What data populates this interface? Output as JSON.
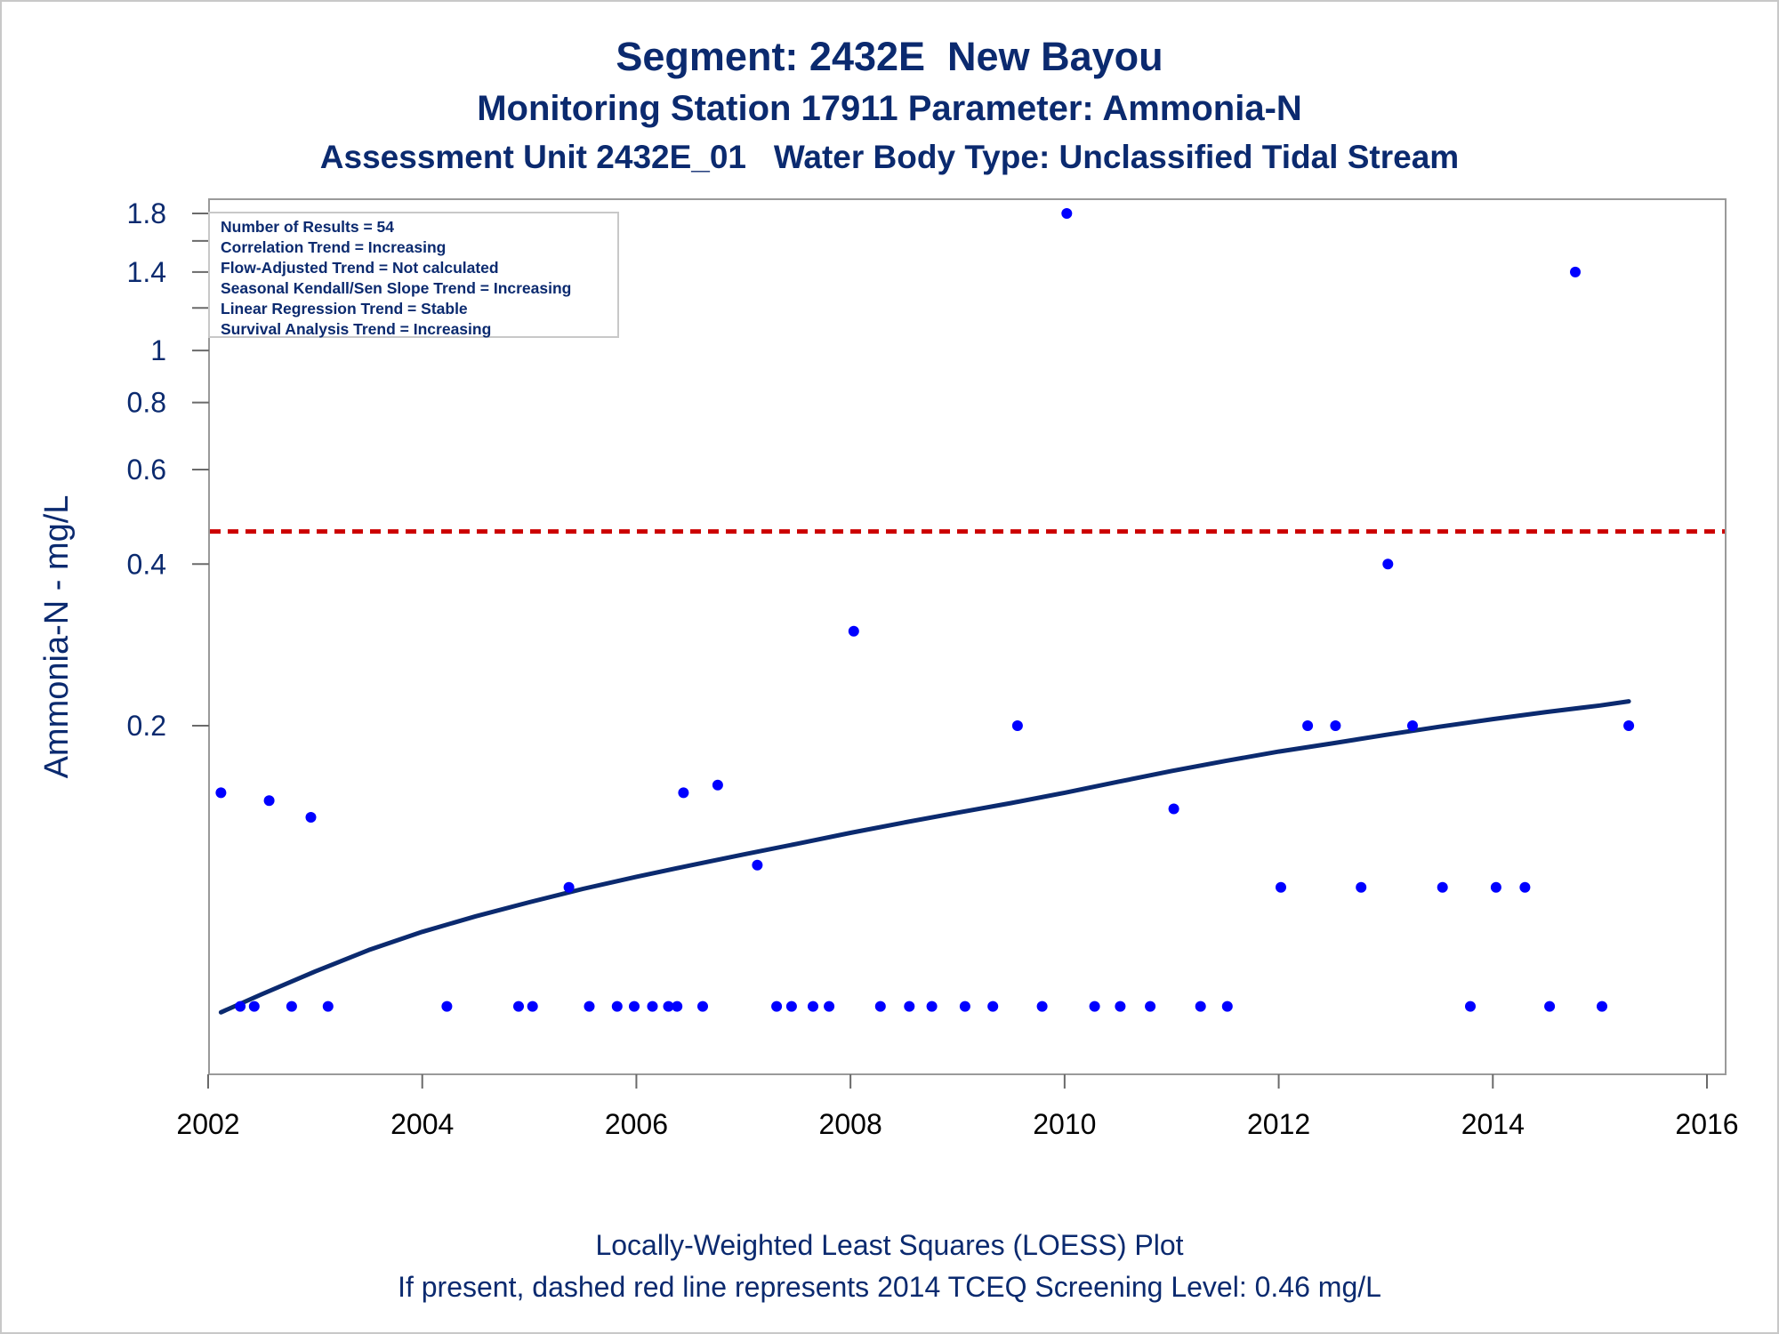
{
  "chart_data": {
    "type": "scatter",
    "title": "Segment: 2432E  New Bayou",
    "subtitle": "Monitoring Station 17911 Parameter: Ammonia-N",
    "subtitle2": "Assessment Unit 2432E_01   Water Body Type: Unclassified Tidal Stream",
    "ylabel": "Ammonia-N - mg/L",
    "xlabel": "",
    "y_scale": "log",
    "yticks": [
      0.2,
      0.4,
      0.6,
      0.8,
      1,
      1.4,
      1.8
    ],
    "ytick_labels": [
      "0.2",
      "0.4",
      "0.6",
      "0.8",
      "1",
      "1.4",
      "1.8"
    ],
    "xticks": [
      2002,
      2004,
      2006,
      2008,
      2010,
      2012,
      2014,
      2016
    ],
    "xtick_labels": [
      "2002",
      "2004",
      "2006",
      "2008",
      "2010",
      "2012",
      "2014",
      "2016"
    ],
    "xlim": [
      2002,
      2016
    ],
    "ylim": [
      0.05,
      1.85
    ],
    "grid": false,
    "legend_position": "top-left",
    "stats": [
      "Number of Results = 54",
      "Correlation Trend = Increasing",
      "Flow-Adjusted Trend = Not calculated",
      "Seasonal Kendall/Sen Slope Trend = Increasing",
      "Linear Regression Trend = Stable",
      "Survival Analysis Trend = Increasing"
    ],
    "screening_level": 0.46,
    "points": [
      {
        "x": 2002.12,
        "y": 0.15
      },
      {
        "x": 2002.3,
        "y": 0.06
      },
      {
        "x": 2002.43,
        "y": 0.06
      },
      {
        "x": 2002.57,
        "y": 0.145
      },
      {
        "x": 2002.78,
        "y": 0.06
      },
      {
        "x": 2002.96,
        "y": 0.135
      },
      {
        "x": 2003.12,
        "y": 0.06
      },
      {
        "x": 2004.23,
        "y": 0.06
      },
      {
        "x": 2004.9,
        "y": 0.06
      },
      {
        "x": 2005.03,
        "y": 0.06
      },
      {
        "x": 2005.37,
        "y": 0.1
      },
      {
        "x": 2005.56,
        "y": 0.06
      },
      {
        "x": 2005.82,
        "y": 0.06
      },
      {
        "x": 2005.98,
        "y": 0.06
      },
      {
        "x": 2006.15,
        "y": 0.06
      },
      {
        "x": 2006.3,
        "y": 0.06
      },
      {
        "x": 2006.38,
        "y": 0.06
      },
      {
        "x": 2006.44,
        "y": 0.15
      },
      {
        "x": 2006.62,
        "y": 0.06
      },
      {
        "x": 2006.76,
        "y": 0.155
      },
      {
        "x": 2007.13,
        "y": 0.11
      },
      {
        "x": 2007.31,
        "y": 0.06
      },
      {
        "x": 2007.45,
        "y": 0.06
      },
      {
        "x": 2007.65,
        "y": 0.06
      },
      {
        "x": 2007.8,
        "y": 0.06
      },
      {
        "x": 2008.03,
        "y": 0.3
      },
      {
        "x": 2008.28,
        "y": 0.06
      },
      {
        "x": 2008.55,
        "y": 0.06
      },
      {
        "x": 2008.76,
        "y": 0.06
      },
      {
        "x": 2009.07,
        "y": 0.06
      },
      {
        "x": 2009.33,
        "y": 0.06
      },
      {
        "x": 2009.56,
        "y": 0.2
      },
      {
        "x": 2009.79,
        "y": 0.06
      },
      {
        "x": 2010.02,
        "y": 1.8
      },
      {
        "x": 2010.28,
        "y": 0.06
      },
      {
        "x": 2010.52,
        "y": 0.06
      },
      {
        "x": 2010.8,
        "y": 0.06
      },
      {
        "x": 2011.02,
        "y": 0.14
      },
      {
        "x": 2011.27,
        "y": 0.06
      },
      {
        "x": 2011.52,
        "y": 0.06
      },
      {
        "x": 2012.02,
        "y": 0.1
      },
      {
        "x": 2012.27,
        "y": 0.2
      },
      {
        "x": 2012.53,
        "y": 0.2
      },
      {
        "x": 2012.77,
        "y": 0.1
      },
      {
        "x": 2013.02,
        "y": 0.4
      },
      {
        "x": 2013.25,
        "y": 0.2
      },
      {
        "x": 2013.53,
        "y": 0.1
      },
      {
        "x": 2013.79,
        "y": 0.06
      },
      {
        "x": 2014.03,
        "y": 0.1
      },
      {
        "x": 2014.3,
        "y": 0.1
      },
      {
        "x": 2014.53,
        "y": 0.06
      },
      {
        "x": 2014.77,
        "y": 1.4
      },
      {
        "x": 2015.02,
        "y": 0.06
      },
      {
        "x": 2015.27,
        "y": 0.2
      }
    ],
    "loess": {
      "x": [
        2002.12,
        2002.5,
        2003.0,
        2003.5,
        2004.0,
        2004.5,
        2005.0,
        2005.5,
        2006.0,
        2006.5,
        2007.0,
        2007.5,
        2008.0,
        2008.5,
        2009.0,
        2009.5,
        2010.0,
        2010.5,
        2011.0,
        2011.5,
        2012.0,
        2012.5,
        2013.0,
        2013.5,
        2014.0,
        2014.5,
        2015.0,
        2015.27
      ],
      "y": [
        0.0585,
        0.0632,
        0.0697,
        0.0764,
        0.0826,
        0.0883,
        0.0938,
        0.0993,
        0.1046,
        0.1098,
        0.1151,
        0.1205,
        0.1263,
        0.132,
        0.1377,
        0.1435,
        0.15,
        0.1572,
        0.1647,
        0.1719,
        0.179,
        0.1854,
        0.1923,
        0.1991,
        0.2057,
        0.2121,
        0.2181,
        0.222
      ]
    },
    "colors": {
      "points": "#0000ff",
      "loess": "#0b2a6f",
      "screening_line": "#cc0000",
      "text": "#0b2a6f"
    }
  },
  "footer": {
    "line1": "Locally-Weighted Least Squares (LOESS) Plot",
    "line2": "If present, dashed red line represents 2014 TCEQ Screening Level: 0.46 mg/L"
  }
}
